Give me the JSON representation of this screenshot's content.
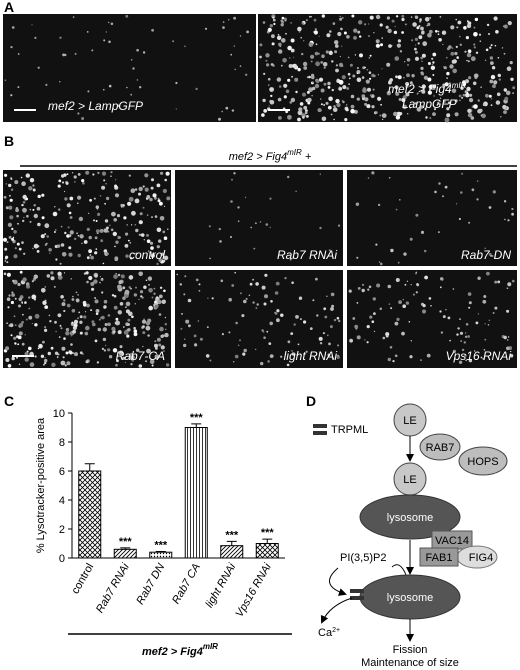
{
  "panel_a": {
    "letter": "A",
    "left_label": "mef2 > LampGFP",
    "right_label": {
      "text": "mef2 > Fig4",
      "sup": "mIR",
      "after": ",",
      "line2": "LampGFP"
    }
  },
  "panel_b": {
    "letter": "B",
    "header": {
      "text": "mef2 > Fig4",
      "sup": "mIR",
      "after": " +"
    },
    "labels": [
      "control",
      "Rab7 RNAi",
      "Rab7-DN",
      "Rab7-CA",
      "light RNAi",
      "Vps16 RNAi"
    ]
  },
  "chart_data": {
    "type": "bar",
    "letter": "C",
    "ylabel": "% Lysotracker-positive area",
    "categories": [
      "control",
      "Rab7 RNAi",
      "Rab7 DN",
      "Rab7 CA",
      "light RNAi",
      "Vps16 RNAi"
    ],
    "label_style": [
      "normal",
      "italic",
      "italic",
      "italic",
      "italic",
      "italic"
    ],
    "values": [
      6.0,
      0.6,
      0.4,
      9.0,
      0.85,
      1.0
    ],
    "errors": [
      0.5,
      0.1,
      0.05,
      0.25,
      0.3,
      0.3
    ],
    "significance": [
      null,
      "***",
      "***",
      "***",
      "***",
      "***"
    ],
    "patterns": [
      "crosshatch",
      "diagonal",
      "dots",
      "vertical",
      "diagonal",
      "crosshatch"
    ],
    "ylim": [
      0,
      10
    ],
    "yticks": [
      0,
      2,
      4,
      6,
      8,
      10
    ],
    "group_label": {
      "text": "mef2 > Fig4",
      "sup": "mIR"
    }
  },
  "panel_d": {
    "letter": "D",
    "legend": "TRPML",
    "nodes": {
      "le_top": "LE",
      "rab7": "RAB7",
      "hops": "HOPS",
      "le_mid": "LE",
      "lysosome_top": "lysosome",
      "vac14": "VAC14",
      "fab1": "FAB1",
      "fig4": "FIG4",
      "pi": "PI(3,5)P2",
      "lysosome_bottom": "lysosome",
      "ca": {
        "text": "Ca",
        "sup": "2+"
      },
      "fission": "Fission",
      "maintenance": "Maintenance of size"
    }
  }
}
